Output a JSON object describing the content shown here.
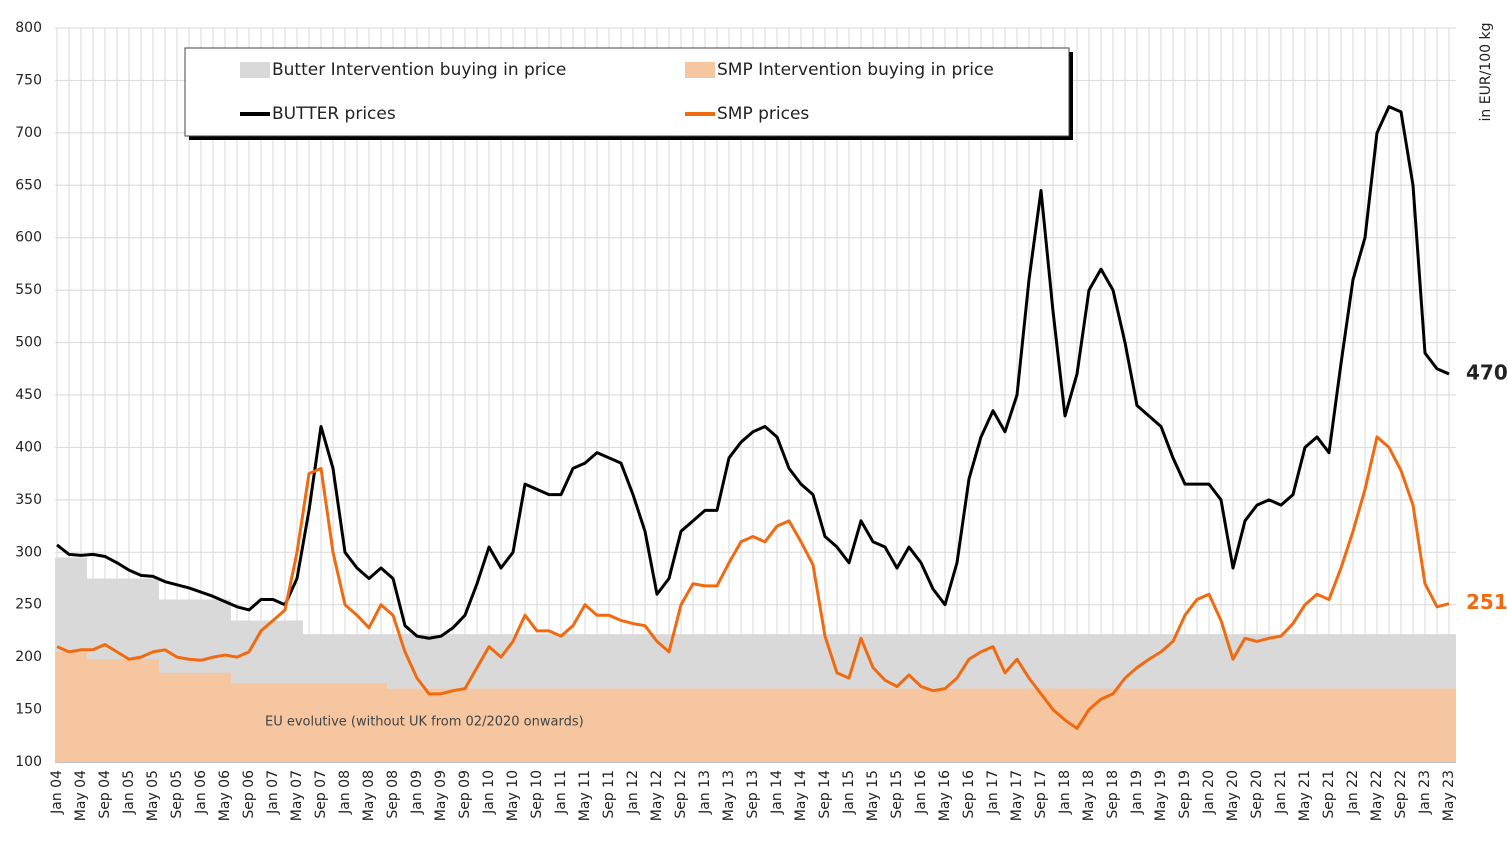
{
  "chart_data": {
    "type": "line",
    "annotation": "EU evolutive (without UK from 02/2020 onwards)",
    "y_label": "in EUR/100 kg",
    "categories": [
      "Jan 04",
      null,
      "May 04",
      null,
      "Sep 04",
      null,
      "Jan 05",
      null,
      "May 05",
      null,
      "Sep 05",
      null,
      "Jan 06",
      null,
      "May 06",
      null,
      "Sep 06",
      null,
      "Jan 07",
      null,
      "May 07",
      null,
      "Sep 07",
      null,
      "Jan 08",
      null,
      "May 08",
      null,
      "Sep 08",
      null,
      "Jan 09",
      null,
      "May 09",
      null,
      "Sep 09",
      null,
      "Jan 10",
      null,
      "May 10",
      null,
      "Sep 10",
      null,
      "Jan 11",
      null,
      "May 11",
      null,
      "Sep 11",
      null,
      "Jan 12",
      null,
      "May 12",
      null,
      "Sep 12",
      null,
      "Jan 13",
      null,
      "May 13",
      null,
      "Sep 13",
      null,
      "Jan 14",
      null,
      "May 14",
      null,
      "Sep 14",
      null,
      "Jan 15",
      null,
      "May 15",
      null,
      "Sep 15",
      null,
      "Jan 16",
      null,
      "May 16",
      null,
      "Sep 16",
      null,
      "Jan 17",
      null,
      "May 17",
      null,
      "Sep 17",
      null,
      "Jan 18",
      null,
      "May 18",
      null,
      "Sep 18",
      null,
      "Jan 19",
      null,
      "May 19",
      null,
      "Sep 19",
      null,
      "Jan 20",
      null,
      "May 20",
      null,
      "Sep 20",
      null,
      "Jan 21",
      null,
      "May 21",
      null,
      "Sep 21",
      null,
      "Jan 22",
      null,
      "May 22",
      null,
      "Sep 22",
      null,
      "Jan 23",
      null,
      "May 23"
    ],
    "series": [
      {
        "name": "Butter Intervention buying in price",
        "style": "step-area",
        "color": "#d9d9d9",
        "values": [
          295,
          295,
          295,
          275,
          275,
          275,
          275,
          275,
          275,
          255,
          255,
          255,
          255,
          255,
          255,
          235,
          235,
          235,
          235,
          235,
          235,
          222,
          222,
          222,
          222,
          222,
          222,
          222,
          222,
          222,
          222,
          222,
          222,
          222,
          222,
          222,
          222,
          222,
          222,
          222,
          222,
          222,
          222,
          222,
          222,
          222,
          222,
          222,
          222,
          222,
          222,
          222,
          222,
          222,
          222,
          222,
          222,
          222,
          222,
          222,
          222,
          222,
          222,
          222,
          222,
          222,
          222,
          222,
          222,
          222,
          222,
          222,
          222,
          222,
          222,
          222,
          222,
          222,
          222,
          222,
          222,
          222,
          222,
          222,
          222,
          222,
          222,
          222,
          222,
          222,
          222,
          222,
          222,
          222,
          222,
          222,
          222,
          222,
          222,
          222,
          222,
          222,
          222,
          222,
          222,
          222,
          222,
          222,
          222,
          222,
          222,
          222,
          222,
          222,
          222,
          222,
          222
        ]
      },
      {
        "name": "SMP Intervention buying in price",
        "style": "step-area",
        "color": "#f5c6a0",
        "values": [
          205,
          205,
          205,
          198,
          198,
          198,
          198,
          198,
          198,
          185,
          185,
          185,
          185,
          185,
          185,
          175,
          175,
          175,
          175,
          175,
          175,
          175,
          175,
          175,
          175,
          175,
          175,
          175,
          170,
          170,
          170,
          170,
          170,
          170,
          170,
          170,
          170,
          170,
          170,
          170,
          170,
          170,
          170,
          170,
          170,
          170,
          170,
          170,
          170,
          170,
          170,
          170,
          170,
          170,
          170,
          170,
          170,
          170,
          170,
          170,
          170,
          170,
          170,
          170,
          170,
          170,
          170,
          170,
          170,
          170,
          170,
          170,
          170,
          170,
          170,
          170,
          170,
          170,
          170,
          170,
          170,
          170,
          170,
          170,
          170,
          170,
          170,
          170,
          170,
          170,
          170,
          170,
          170,
          170,
          170,
          170,
          170,
          170,
          170,
          170,
          170,
          170,
          170,
          170,
          170,
          170,
          170,
          170,
          170,
          170,
          170,
          170,
          170,
          170,
          170,
          170,
          170
        ]
      },
      {
        "name": "BUTTER prices",
        "style": "line",
        "color": "#000000",
        "end_label": true,
        "values": [
          307,
          298,
          297,
          298,
          296,
          290,
          283,
          278,
          277,
          272,
          269,
          266,
          262,
          258,
          253,
          248,
          245,
          255,
          255,
          250,
          275,
          340,
          420,
          380,
          300,
          285,
          275,
          285,
          275,
          230,
          220,
          218,
          220,
          228,
          240,
          270,
          305,
          285,
          300,
          365,
          360,
          355,
          355,
          380,
          385,
          395,
          390,
          385,
          355,
          320,
          260,
          275,
          320,
          330,
          340,
          340,
          390,
          405,
          415,
          420,
          410,
          380,
          365,
          355,
          315,
          305,
          290,
          330,
          310,
          305,
          285,
          305,
          290,
          265,
          250,
          290,
          370,
          410,
          435,
          415,
          450,
          560,
          645,
          530,
          430,
          470,
          550,
          570,
          550,
          500,
          440,
          430,
          420,
          390,
          365,
          365,
          365,
          350,
          285,
          330,
          345,
          350,
          345,
          355,
          400,
          410,
          395,
          480,
          560,
          600,
          700,
          725,
          720,
          650,
          490,
          475,
          470
        ]
      },
      {
        "name": "SMP prices",
        "style": "line",
        "color": "#f26a10",
        "end_label": true,
        "values": [
          210,
          205,
          207,
          207,
          212,
          205,
          198,
          200,
          205,
          207,
          200,
          198,
          197,
          200,
          202,
          200,
          205,
          225,
          235,
          245,
          300,
          375,
          380,
          300,
          250,
          240,
          228,
          250,
          240,
          205,
          180,
          165,
          165,
          168,
          170,
          190,
          210,
          200,
          215,
          240,
          225,
          225,
          220,
          230,
          250,
          240,
          240,
          235,
          232,
          230,
          215,
          205,
          250,
          270,
          268,
          268,
          290,
          310,
          315,
          310,
          325,
          330,
          310,
          288,
          220,
          185,
          180,
          218,
          190,
          178,
          172,
          183,
          172,
          168,
          170,
          180,
          198,
          205,
          210,
          185,
          198,
          180,
          165,
          150,
          140,
          132,
          150,
          160,
          165,
          180,
          190,
          198,
          205,
          215,
          240,
          255,
          260,
          235,
          198,
          218,
          215,
          218,
          220,
          232,
          250,
          260,
          255,
          285,
          320,
          360,
          410,
          400,
          378,
          345,
          270,
          248,
          251
        ]
      }
    ],
    "ylim": [
      100,
      800
    ],
    "yticks": [
      100,
      150,
      200,
      250,
      300,
      350,
      400,
      450,
      500,
      550,
      600,
      650,
      700,
      750,
      800
    ],
    "grid": true
  }
}
